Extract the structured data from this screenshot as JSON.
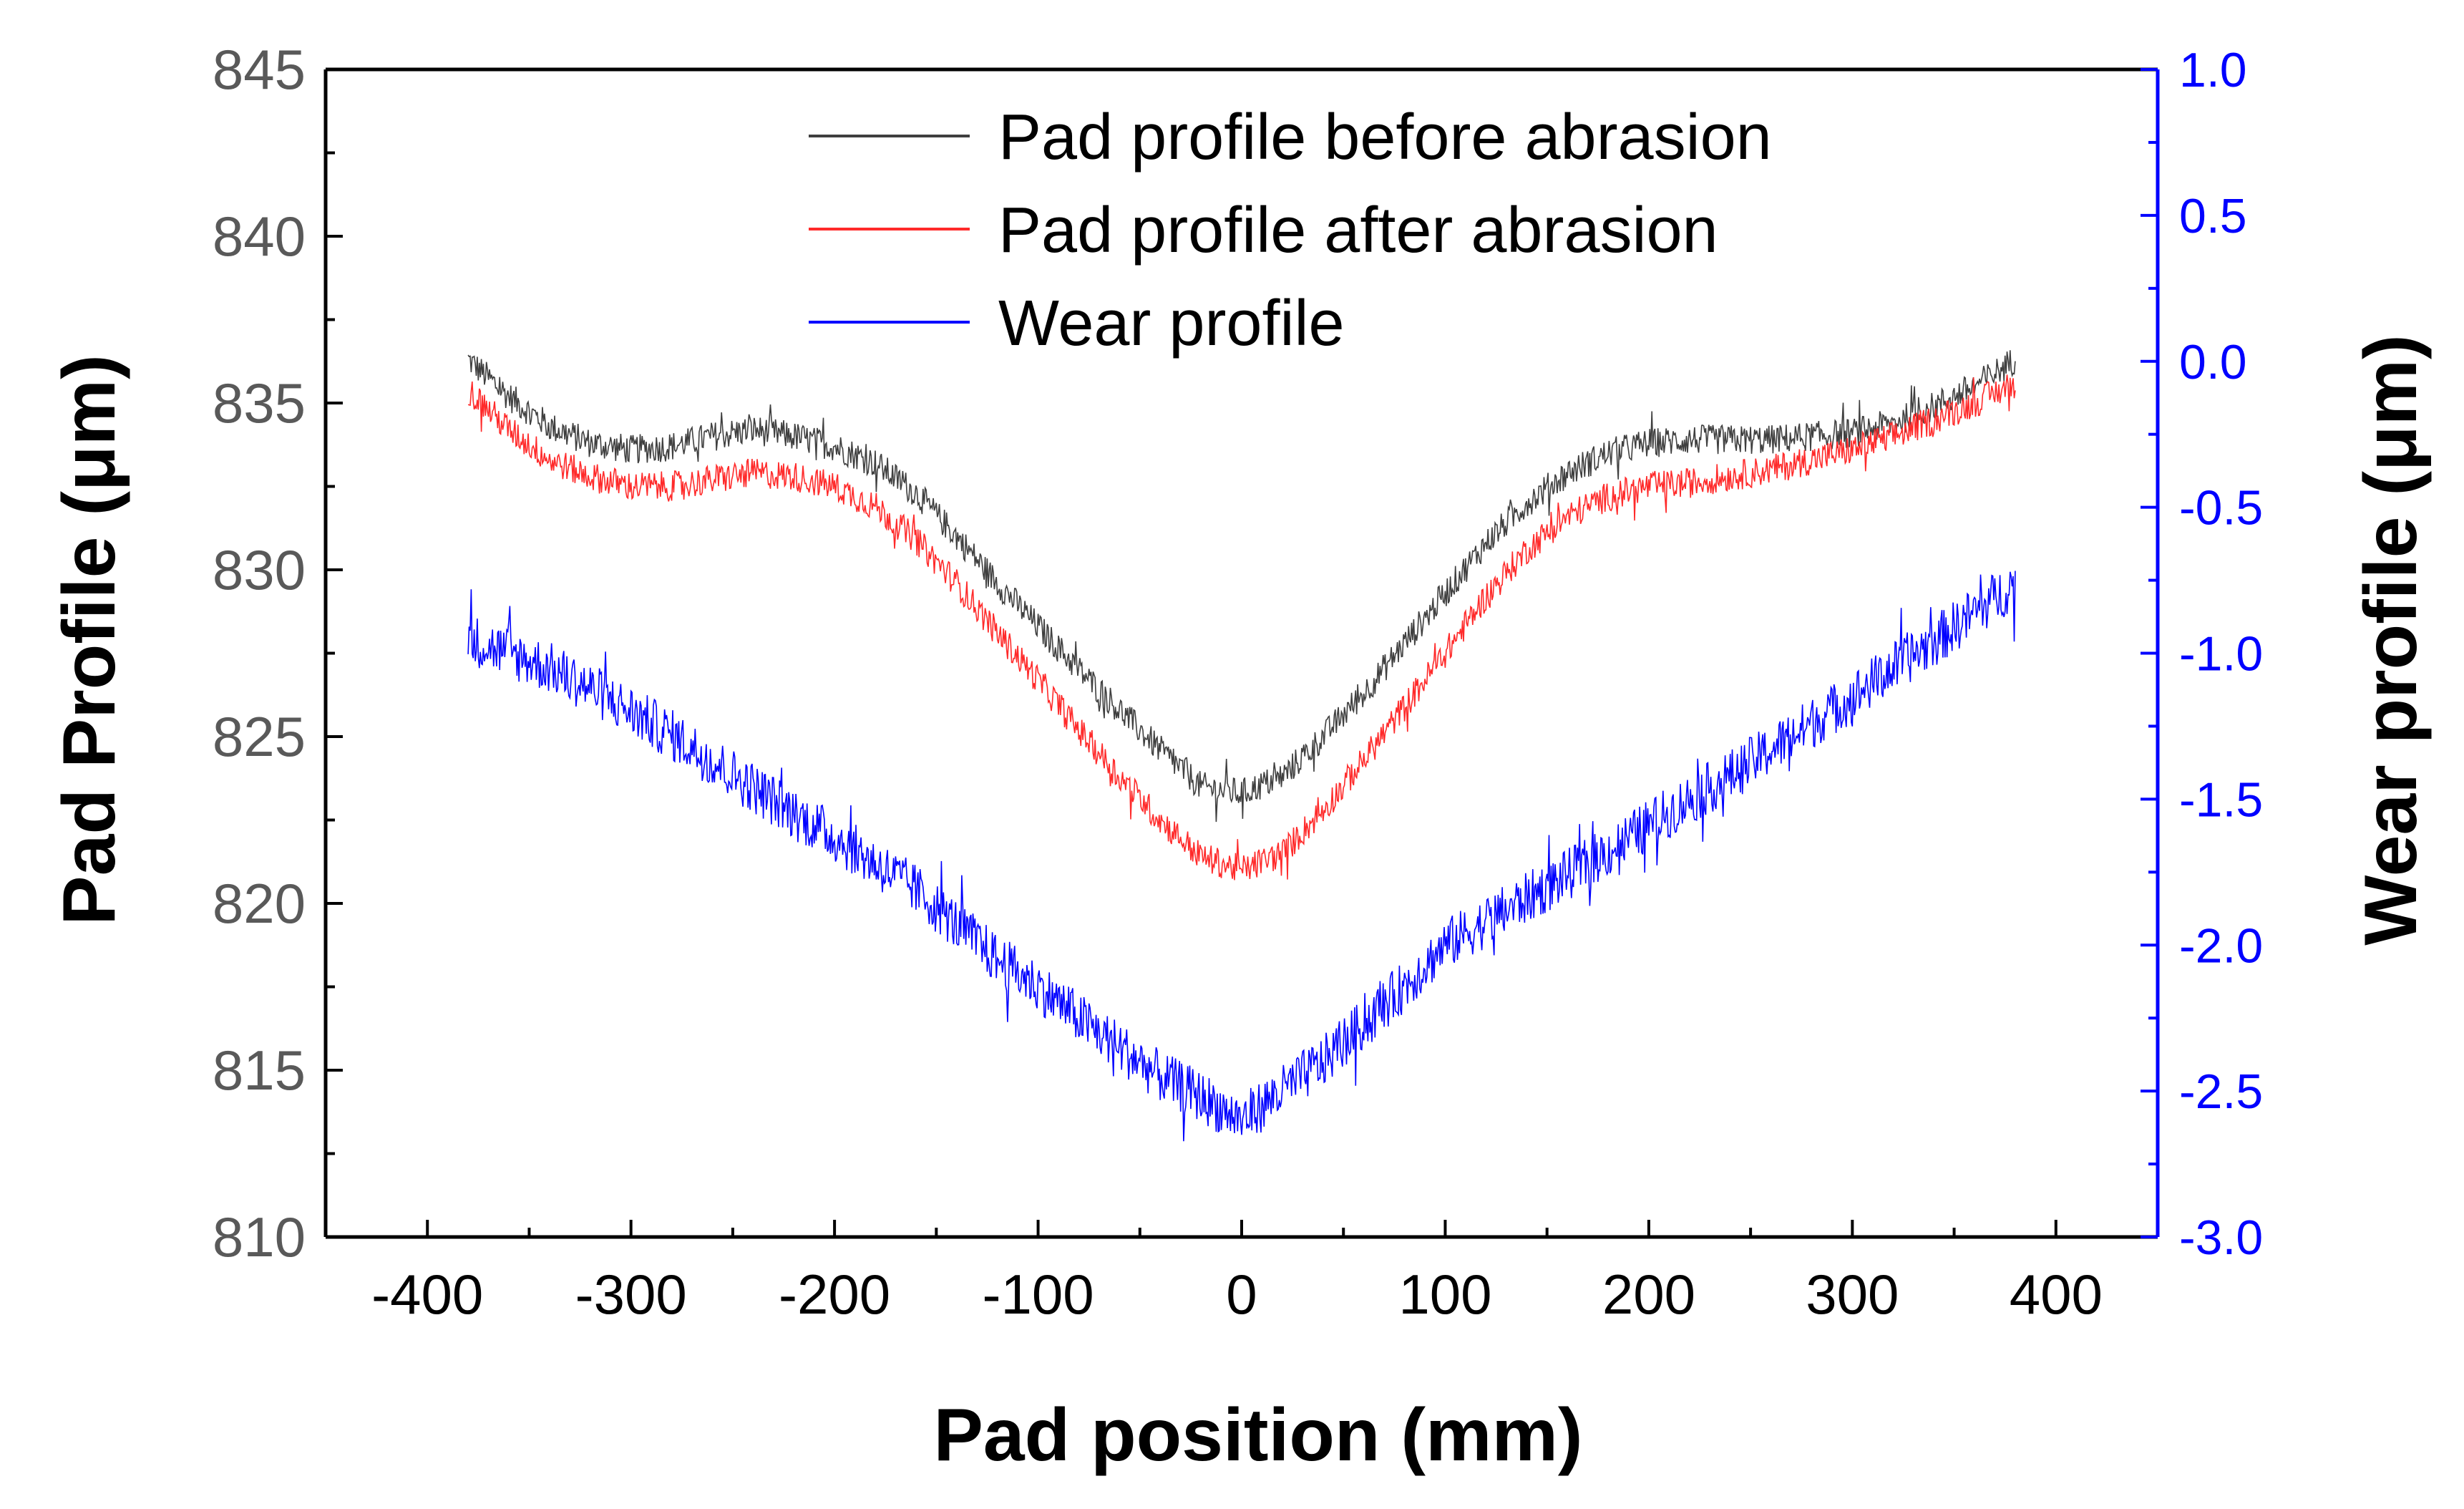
{
  "chart_data": {
    "type": "line",
    "title": "",
    "xlabel": "Pad position (mm)",
    "ylabel_left": "Pad Profile (μm)",
    "ylabel_right": "Wear profile (μm)",
    "xlim": [
      -450,
      450
    ],
    "ylim_left": [
      810,
      845
    ],
    "ylim_right": [
      -3.0,
      1.0
    ],
    "x_ticks": [
      -400,
      -300,
      -200,
      -100,
      0,
      100,
      200,
      300,
      400
    ],
    "x_tick_labels": [
      "-400",
      "-300",
      "-200",
      "-100",
      "0",
      "100",
      "200",
      "300",
      "400"
    ],
    "y_left_ticks": [
      810,
      815,
      820,
      825,
      830,
      835,
      840,
      845
    ],
    "y_left_tick_labels": [
      "810",
      "815",
      "820",
      "825",
      "830",
      "835",
      "840",
      "845"
    ],
    "y_right_ticks": [
      -3.0,
      -2.5,
      -2.0,
      -1.5,
      -1.0,
      -0.5,
      0.0,
      0.5,
      1.0
    ],
    "y_right_tick_labels": [
      "-3.0",
      "-2.5",
      "-2.0",
      "-1.5",
      "-1.0",
      "-0.5",
      "0.0",
      "0.5",
      "1.0"
    ],
    "grid": false,
    "legend_position": "top-center",
    "colors": {
      "before": "#3f3f3f",
      "after": "#ff2a2a",
      "wear": "#0000ff",
      "right_axis": "#0000ff",
      "left_tick_text": "#595959"
    },
    "series": [
      {
        "name": "Pad profile before abrasion",
        "axis": "left",
        "color_key": "before",
        "x": [
          -380,
          -360,
          -340,
          -320,
          -300,
          -280,
          -260,
          -240,
          -220,
          -200,
          -180,
          -160,
          -140,
          -120,
          -100,
          -80,
          -60,
          -40,
          -20,
          0,
          20,
          40,
          60,
          80,
          100,
          120,
          140,
          160,
          180,
          200,
          220,
          240,
          260,
          280,
          300,
          320,
          340,
          360,
          380
        ],
        "y": [
          836.3,
          835.2,
          834.3,
          833.8,
          833.6,
          833.7,
          834.0,
          834.2,
          834.0,
          833.7,
          833.2,
          832.3,
          831.0,
          829.6,
          828.3,
          827.0,
          825.8,
          824.6,
          823.5,
          823.3,
          823.8,
          825.0,
          826.3,
          827.8,
          829.3,
          830.8,
          832.0,
          832.9,
          833.5,
          833.8,
          833.9,
          833.9,
          833.9,
          834.0,
          834.1,
          834.4,
          834.9,
          835.5,
          836.3
        ],
        "noise": 0.45
      },
      {
        "name": "Pad profile after abrasion",
        "axis": "left",
        "color_key": "after",
        "x": [
          -380,
          -360,
          -340,
          -320,
          -300,
          -280,
          -260,
          -240,
          -220,
          -200,
          -180,
          -160,
          -140,
          -120,
          -100,
          -80,
          -60,
          -40,
          -20,
          0,
          20,
          40,
          60,
          80,
          100,
          120,
          140,
          160,
          180,
          200,
          220,
          240,
          260,
          280,
          300,
          320,
          340,
          360,
          380
        ],
        "y": [
          835.4,
          834.2,
          833.3,
          832.8,
          832.5,
          832.5,
          832.7,
          832.9,
          832.8,
          832.5,
          831.9,
          830.9,
          829.6,
          828.1,
          826.7,
          825.2,
          823.8,
          822.5,
          821.4,
          821.0,
          821.5,
          822.8,
          824.3,
          825.9,
          827.5,
          829.2,
          830.6,
          831.6,
          832.2,
          832.5,
          832.6,
          832.8,
          833.0,
          833.3,
          833.6,
          834.0,
          834.5,
          835.0,
          835.6
        ],
        "noise": 0.45
      },
      {
        "name": "Wear profile",
        "axis": "right",
        "color_key": "wear",
        "x": [
          -380,
          -360,
          -340,
          -320,
          -300,
          -280,
          -260,
          -240,
          -220,
          -200,
          -180,
          -160,
          -140,
          -120,
          -100,
          -80,
          -60,
          -40,
          -20,
          0,
          20,
          40,
          60,
          80,
          100,
          120,
          140,
          160,
          180,
          200,
          220,
          240,
          260,
          280,
          300,
          320,
          340,
          360,
          380
        ],
        "y": [
          -0.95,
          -1.0,
          -1.05,
          -1.12,
          -1.2,
          -1.28,
          -1.37,
          -1.46,
          -1.55,
          -1.63,
          -1.72,
          -1.81,
          -1.93,
          -2.05,
          -2.14,
          -2.25,
          -2.35,
          -2.45,
          -2.52,
          -2.6,
          -2.5,
          -2.4,
          -2.27,
          -2.14,
          -2.0,
          -1.92,
          -1.84,
          -1.76,
          -1.68,
          -1.59,
          -1.5,
          -1.42,
          -1.33,
          -1.24,
          -1.15,
          -1.05,
          -0.96,
          -0.86,
          -0.76
        ],
        "noise": 0.09
      }
    ]
  }
}
